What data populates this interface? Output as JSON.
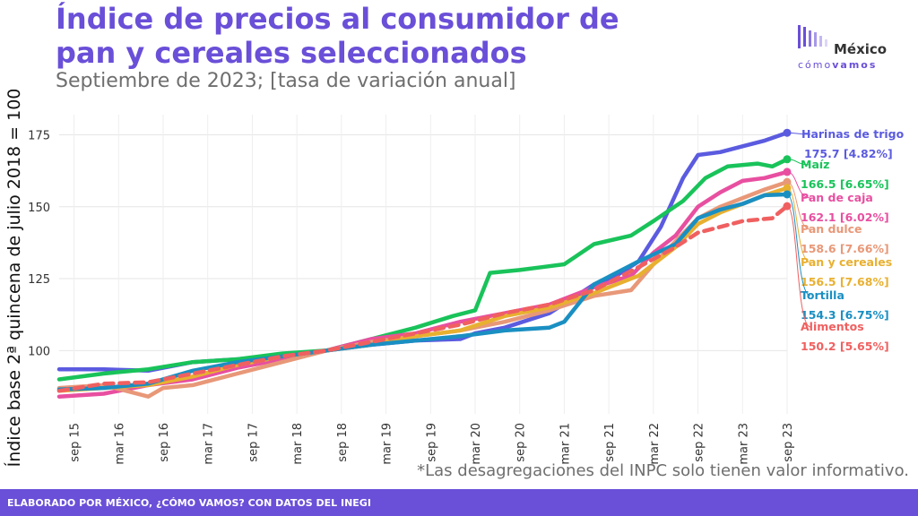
{
  "header": {
    "title": "Índice de precios al consumidor de pan y cereales seleccionados",
    "subtitle": "Septiembre de 2023; [tasa de variación anual]"
  },
  "logo": {
    "name": "México",
    "tagline_a": "cómo",
    "tagline_b": "vamos",
    "color": "#6a4fd8"
  },
  "note": "*Las desagregaciones del INPC solo tienen valor informativo.",
  "footer": "ELABORADO POR MÉXICO, ¿CÓMO VAMOS? CON DATOS DEL INEGI",
  "chart_data": {
    "type": "line",
    "ylabel": "Índice base 2ª quincena de julio 2018 = 100",
    "xlabel": "",
    "ylim": [
      78,
      182
    ],
    "yticks": [
      100,
      125,
      150,
      175
    ],
    "grid": true,
    "x_range": [
      "2015-07",
      "2023-09"
    ],
    "xticks": [
      {
        "label": "sep 15",
        "x": "2015-09"
      },
      {
        "label": "mar 16",
        "x": "2016-03"
      },
      {
        "label": "sep 16",
        "x": "2016-09"
      },
      {
        "label": "mar 17",
        "x": "2017-03"
      },
      {
        "label": "sep 17",
        "x": "2017-09"
      },
      {
        "label": "mar 18",
        "x": "2018-03"
      },
      {
        "label": "sep 18",
        "x": "2018-09"
      },
      {
        "label": "mar 19",
        "x": "2019-03"
      },
      {
        "label": "sep 19",
        "x": "2019-09"
      },
      {
        "label": "mar 20",
        "x": "2020-03"
      },
      {
        "label": "sep 20",
        "x": "2020-09"
      },
      {
        "label": "mar 21",
        "x": "2021-03"
      },
      {
        "label": "sep 21",
        "x": "2021-09"
      },
      {
        "label": "mar 22",
        "x": "2022-03"
      },
      {
        "label": "sep 22",
        "x": "2022-09"
      },
      {
        "label": "mar 23",
        "x": "2023-03"
      },
      {
        "label": "sep 23",
        "x": "2023-09"
      }
    ],
    "series": [
      {
        "name": "Harinas de trigo",
        "end_label": "175.7 [4.82%]",
        "color": "#5b5be0",
        "dashed": false,
        "points": [
          [
            "2015-07",
            93.5
          ],
          [
            "2016-01",
            93.5
          ],
          [
            "2016-07",
            93
          ],
          [
            "2017-01",
            96
          ],
          [
            "2017-07",
            97
          ],
          [
            "2018-01",
            98.5
          ],
          [
            "2018-07",
            100
          ],
          [
            "2019-01",
            102
          ],
          [
            "2019-07",
            103.5
          ],
          [
            "2020-01",
            104
          ],
          [
            "2020-03",
            106
          ],
          [
            "2020-07",
            108
          ],
          [
            "2021-01",
            113
          ],
          [
            "2021-07",
            123
          ],
          [
            "2021-10",
            126
          ],
          [
            "2022-01",
            131
          ],
          [
            "2022-04",
            143
          ],
          [
            "2022-07",
            160
          ],
          [
            "2022-09",
            168
          ],
          [
            "2022-12",
            169
          ],
          [
            "2023-03",
            171
          ],
          [
            "2023-06",
            173
          ],
          [
            "2023-09",
            175.7
          ]
        ]
      },
      {
        "name": "Maíz",
        "end_label": "166.5 [6.65%]",
        "color": "#19c35a",
        "dashed": false,
        "points": [
          [
            "2015-07",
            90
          ],
          [
            "2016-01",
            92
          ],
          [
            "2016-07",
            93.5
          ],
          [
            "2017-01",
            96
          ],
          [
            "2017-07",
            97
          ],
          [
            "2018-01",
            99
          ],
          [
            "2018-07",
            100
          ],
          [
            "2019-01",
            104
          ],
          [
            "2019-07",
            108
          ],
          [
            "2019-12",
            112
          ],
          [
            "2020-03",
            114
          ],
          [
            "2020-05",
            127
          ],
          [
            "2020-09",
            128
          ],
          [
            "2020-12",
            129
          ],
          [
            "2021-03",
            130
          ],
          [
            "2021-07",
            137
          ],
          [
            "2021-12",
            140
          ],
          [
            "2022-03",
            145
          ],
          [
            "2022-07",
            152
          ],
          [
            "2022-10",
            160
          ],
          [
            "2023-01",
            164
          ],
          [
            "2023-05",
            165
          ],
          [
            "2023-07",
            164
          ],
          [
            "2023-09",
            166.5
          ]
        ]
      },
      {
        "name": "Pan de caja",
        "end_label": "162.1 [6.02%]",
        "color": "#e84fa0",
        "dashed": false,
        "points": [
          [
            "2015-07",
            84
          ],
          [
            "2016-01",
            85
          ],
          [
            "2016-07",
            88
          ],
          [
            "2017-01",
            90
          ],
          [
            "2017-07",
            94
          ],
          [
            "2018-01",
            97
          ],
          [
            "2018-07",
            100
          ],
          [
            "2019-01",
            104
          ],
          [
            "2019-07",
            106
          ],
          [
            "2020-01",
            110
          ],
          [
            "2020-07",
            113
          ],
          [
            "2021-01",
            116
          ],
          [
            "2021-07",
            122
          ],
          [
            "2021-12",
            126
          ],
          [
            "2022-03",
            134
          ],
          [
            "2022-06",
            140
          ],
          [
            "2022-09",
            150
          ],
          [
            "2022-12",
            155
          ],
          [
            "2023-03",
            159
          ],
          [
            "2023-06",
            160
          ],
          [
            "2023-09",
            162.1
          ]
        ]
      },
      {
        "name": "Pan dulce",
        "end_label": "158.6 [7.66%]",
        "color": "#e89878",
        "dashed": false,
        "points": [
          [
            "2015-07",
            87
          ],
          [
            "2016-01",
            88
          ],
          [
            "2016-07",
            84
          ],
          [
            "2016-09",
            87
          ],
          [
            "2017-01",
            88
          ],
          [
            "2017-07",
            92
          ],
          [
            "2018-01",
            96
          ],
          [
            "2018-07",
            100
          ],
          [
            "2019-01",
            103
          ],
          [
            "2019-07",
            105
          ],
          [
            "2020-01",
            107
          ],
          [
            "2020-07",
            110
          ],
          [
            "2021-01",
            114
          ],
          [
            "2021-07",
            119
          ],
          [
            "2021-12",
            121
          ],
          [
            "2022-03",
            130
          ],
          [
            "2022-06",
            138
          ],
          [
            "2022-09",
            146
          ],
          [
            "2022-12",
            150
          ],
          [
            "2023-03",
            153
          ],
          [
            "2023-06",
            156
          ],
          [
            "2023-09",
            158.6
          ]
        ]
      },
      {
        "name": "Pan y cereales",
        "end_label": "156.5 [7.68%]",
        "color": "#e8b030",
        "dashed": false,
        "points": [
          [
            "2015-07",
            86
          ],
          [
            "2016-01",
            87
          ],
          [
            "2016-07",
            88
          ],
          [
            "2017-01",
            91
          ],
          [
            "2017-07",
            95
          ],
          [
            "2018-01",
            98
          ],
          [
            "2018-07",
            100
          ],
          [
            "2019-01",
            102
          ],
          [
            "2019-07",
            105
          ],
          [
            "2020-01",
            107
          ],
          [
            "2020-07",
            112
          ],
          [
            "2021-01",
            115
          ],
          [
            "2021-07",
            120
          ],
          [
            "2022-01",
            126
          ],
          [
            "2022-06",
            136
          ],
          [
            "2022-09",
            144
          ],
          [
            "2022-12",
            148
          ],
          [
            "2023-03",
            151
          ],
          [
            "2023-06",
            154
          ],
          [
            "2023-09",
            156.5
          ]
        ]
      },
      {
        "name": "Tortilla",
        "end_label": "154.3 [6.75%]",
        "color": "#1a8fc2",
        "dashed": false,
        "points": [
          [
            "2015-07",
            86.5
          ],
          [
            "2016-01",
            87
          ],
          [
            "2016-07",
            88.5
          ],
          [
            "2017-01",
            93
          ],
          [
            "2017-07",
            96
          ],
          [
            "2018-01",
            98
          ],
          [
            "2018-07",
            100
          ],
          [
            "2019-01",
            102
          ],
          [
            "2019-07",
            103.5
          ],
          [
            "2020-01",
            105
          ],
          [
            "2020-07",
            107
          ],
          [
            "2021-01",
            108
          ],
          [
            "2021-03",
            110
          ],
          [
            "2021-07",
            123
          ],
          [
            "2022-01",
            131
          ],
          [
            "2022-06",
            137
          ],
          [
            "2022-09",
            146
          ],
          [
            "2022-12",
            149
          ],
          [
            "2023-03",
            151
          ],
          [
            "2023-06",
            154
          ],
          [
            "2023-09",
            154.3
          ]
        ]
      },
      {
        "name": "Alimentos",
        "end_label": "150.2 [5.65%]",
        "color": "#f06060",
        "dashed": true,
        "points": [
          [
            "2015-07",
            86
          ],
          [
            "2016-01",
            88.5
          ],
          [
            "2016-07",
            89
          ],
          [
            "2017-01",
            92
          ],
          [
            "2017-07",
            95
          ],
          [
            "2018-01",
            98
          ],
          [
            "2018-07",
            100
          ],
          [
            "2019-01",
            103
          ],
          [
            "2019-07",
            106
          ],
          [
            "2020-01",
            109
          ],
          [
            "2020-07",
            113
          ],
          [
            "2021-01",
            116
          ],
          [
            "2021-07",
            121
          ],
          [
            "2022-01",
            129
          ],
          [
            "2022-06",
            136
          ],
          [
            "2022-09",
            141
          ],
          [
            "2022-12",
            143
          ],
          [
            "2023-03",
            145
          ],
          [
            "2023-07",
            146
          ],
          [
            "2023-09",
            150.2
          ]
        ]
      }
    ]
  }
}
